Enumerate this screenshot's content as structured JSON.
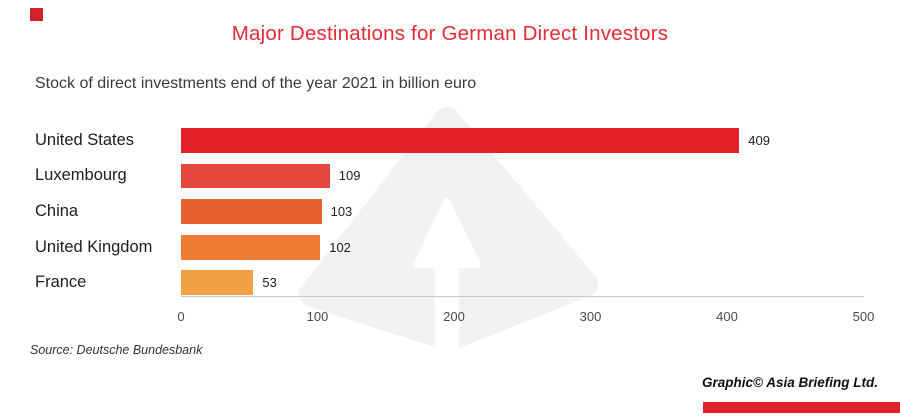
{
  "page": {
    "title": "Major Destinations for German Direct Investors",
    "subtitle": "Stock of direct investments end of the year 2021 in billion euro",
    "source": "Source: Deutsche Bundesbank",
    "credit": "Graphic© Asia Briefing Ltd."
  },
  "colors": {
    "title_red": "#e72b36",
    "accent_square": "#d2232a",
    "accent_bar": "#e2212b",
    "axis_line": "#c9c9c9",
    "watermark_gray": "#f2f2f2"
  },
  "chart_data": {
    "type": "bar",
    "orientation": "horizontal",
    "title": "Major Destinations for German Direct Investors",
    "subtitle": "Stock of direct investments end of the year 2021 in billion euro",
    "categories": [
      "United States",
      "Luxembourg",
      "China",
      "United Kingdom",
      "France"
    ],
    "values": [
      409,
      109,
      103,
      102,
      53
    ],
    "value_labels": [
      "409",
      "109",
      "103",
      "102",
      "53"
    ],
    "bar_colors": [
      "#e2212b",
      "#e6473d",
      "#e8602f",
      "#ee7d33",
      "#f2a044"
    ],
    "xlim": [
      0,
      500
    ],
    "x_ticks": [
      "0",
      "100",
      "200",
      "300",
      "400",
      "500"
    ],
    "grid": false,
    "legend": false,
    "source": "Source: Deutsche Bundesbank",
    "credit": "Graphic© Asia Briefing Ltd.",
    "watermark": "asia-briefing-arrow-logo"
  }
}
